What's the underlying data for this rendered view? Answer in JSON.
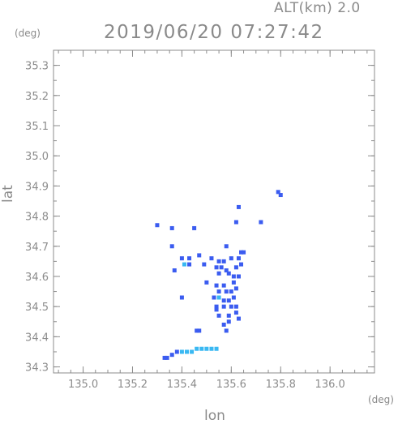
{
  "header": {
    "altitude": "ALT(km) 2.0",
    "timestamp": "2019/06/20 07:27:42"
  },
  "axes": {
    "y_unit": "(deg)",
    "x_unit": "(deg)",
    "y_title": "lat",
    "x_title": "lon",
    "x_ticks": [
      "135.0",
      "135.2",
      "135.4",
      "135.6",
      "135.8",
      "136.0"
    ],
    "y_ticks": [
      "34.3",
      "34.4",
      "34.5",
      "34.6",
      "34.7",
      "34.8",
      "34.9",
      "35.0",
      "35.1",
      "35.2",
      "35.3"
    ]
  },
  "colors": {
    "axis": "#8c8c8c",
    "echo_main": "#3b5cf0",
    "echo_light": "#39b8f2"
  },
  "chart_data": {
    "type": "scatter",
    "title": "2019/06/20 07:27:42",
    "xlabel": "lon",
    "ylabel": "lat",
    "xlim": [
      134.88,
      136.18
    ],
    "ylim": [
      34.28,
      35.35
    ],
    "grid": false,
    "series": [
      {
        "color": "#3b5cf0",
        "points": [
          [
            135.79,
            34.88
          ],
          [
            135.8,
            34.87
          ],
          [
            135.3,
            34.77
          ],
          [
            135.36,
            34.76
          ],
          [
            135.45,
            34.76
          ],
          [
            135.63,
            34.83
          ],
          [
            135.62,
            34.78
          ],
          [
            135.72,
            34.78
          ],
          [
            135.36,
            34.7
          ],
          [
            135.58,
            34.7
          ],
          [
            135.64,
            34.68
          ],
          [
            135.65,
            34.68
          ],
          [
            135.63,
            34.66
          ],
          [
            135.4,
            34.66
          ],
          [
            135.43,
            34.66
          ],
          [
            135.47,
            34.67
          ],
          [
            135.52,
            34.66
          ],
          [
            135.55,
            34.65
          ],
          [
            135.57,
            34.65
          ],
          [
            135.6,
            34.66
          ],
          [
            135.43,
            34.64
          ],
          [
            135.49,
            34.64
          ],
          [
            135.54,
            34.63
          ],
          [
            135.56,
            34.63
          ],
          [
            135.58,
            34.62
          ],
          [
            135.62,
            34.63
          ],
          [
            135.64,
            34.64
          ],
          [
            135.37,
            34.62
          ],
          [
            135.55,
            34.61
          ],
          [
            135.59,
            34.61
          ],
          [
            135.61,
            34.6
          ],
          [
            135.63,
            34.6
          ],
          [
            135.5,
            34.58
          ],
          [
            135.54,
            34.57
          ],
          [
            135.57,
            34.57
          ],
          [
            135.61,
            34.58
          ],
          [
            135.62,
            34.56
          ],
          [
            135.55,
            34.55
          ],
          [
            135.58,
            34.55
          ],
          [
            135.6,
            34.55
          ],
          [
            135.53,
            34.53
          ],
          [
            135.57,
            34.52
          ],
          [
            135.59,
            34.52
          ],
          [
            135.61,
            34.53
          ],
          [
            135.54,
            34.5
          ],
          [
            135.57,
            34.5
          ],
          [
            135.6,
            34.5
          ],
          [
            135.62,
            34.5
          ],
          [
            135.4,
            34.53
          ],
          [
            135.54,
            34.49
          ],
          [
            135.55,
            34.47
          ],
          [
            135.59,
            34.47
          ],
          [
            135.62,
            34.48
          ],
          [
            135.57,
            34.44
          ],
          [
            135.59,
            34.45
          ],
          [
            135.63,
            34.46
          ],
          [
            135.58,
            34.42
          ],
          [
            135.46,
            34.42
          ],
          [
            135.47,
            34.42
          ],
          [
            135.33,
            34.33
          ],
          [
            135.34,
            34.33
          ],
          [
            135.36,
            34.34
          ],
          [
            135.38,
            34.35
          ]
        ]
      },
      {
        "color": "#39b8f2",
        "points": [
          [
            135.41,
            34.64
          ],
          [
            135.55,
            34.53
          ],
          [
            135.4,
            34.35
          ],
          [
            135.42,
            34.35
          ],
          [
            135.44,
            34.35
          ],
          [
            135.46,
            34.36
          ],
          [
            135.48,
            34.36
          ],
          [
            135.5,
            34.36
          ],
          [
            135.52,
            34.36
          ],
          [
            135.54,
            34.36
          ]
        ]
      }
    ]
  }
}
